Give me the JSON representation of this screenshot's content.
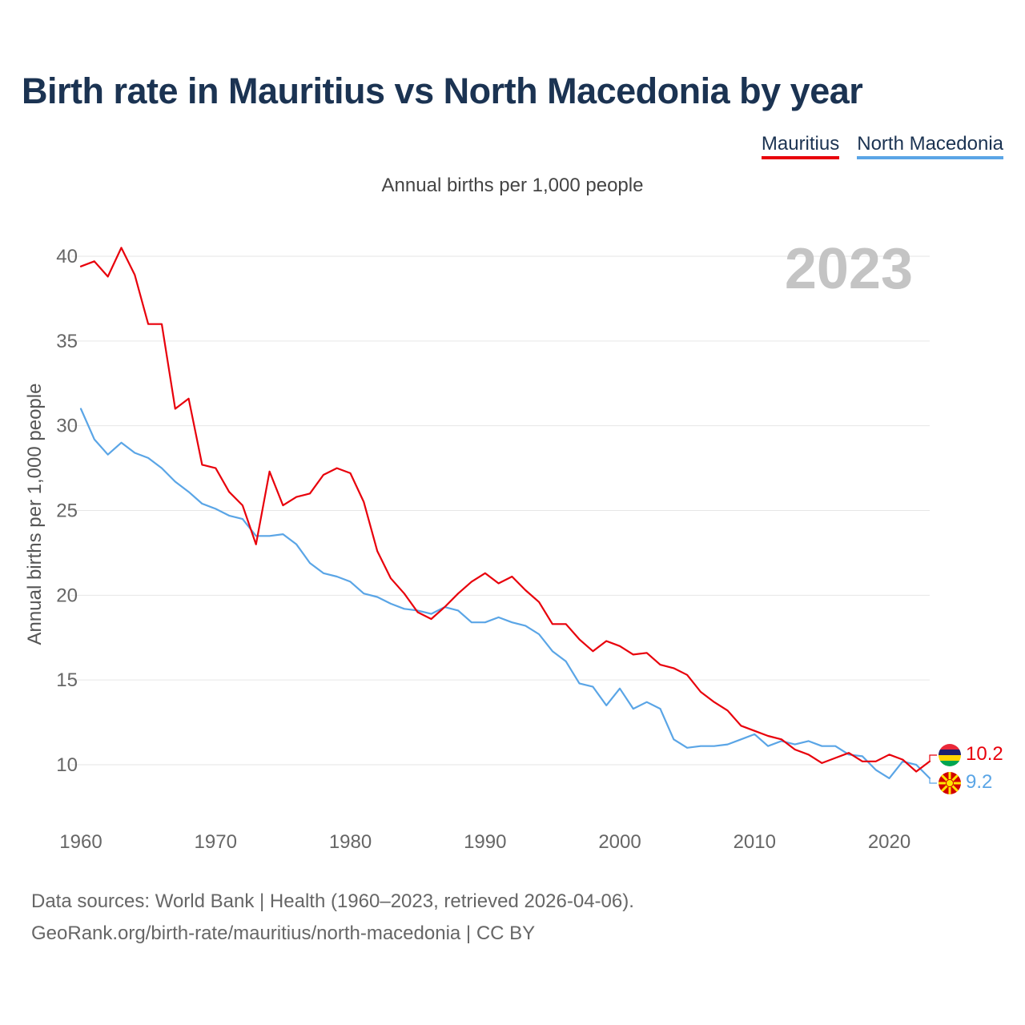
{
  "title": "Birth rate in Mauritius vs North Macedonia by year",
  "subtitle": "Annual births per 1,000 people",
  "footer": {
    "line1": "Data sources: World Bank | Health (1960–2023, retrieved 2026-04-06).",
    "line2": "GeoRank.org/birth-rate/mauritius/north-macedonia | CC BY"
  },
  "colors": {
    "mauritius": "#e8000b",
    "north_macedonia": "#5aa5e6",
    "title": "#1b3352",
    "year_watermark": "#c4c4c4"
  },
  "chart_data": {
    "type": "line",
    "year_watermark": "2023",
    "xlabel": "",
    "ylabel": "Annual births per 1,000 people",
    "xlim": [
      1960,
      2023
    ],
    "ylim": [
      7,
      42
    ],
    "x_ticks": [
      1960,
      1970,
      1980,
      1990,
      2000,
      2010,
      2020
    ],
    "y_ticks": [
      10,
      15,
      20,
      25,
      30,
      35,
      40
    ],
    "x": [
      1960,
      1961,
      1962,
      1963,
      1964,
      1965,
      1966,
      1967,
      1968,
      1969,
      1970,
      1971,
      1972,
      1973,
      1974,
      1975,
      1976,
      1977,
      1978,
      1979,
      1980,
      1981,
      1982,
      1983,
      1984,
      1985,
      1986,
      1987,
      1988,
      1989,
      1990,
      1991,
      1992,
      1993,
      1994,
      1995,
      1996,
      1997,
      1998,
      1999,
      2000,
      2001,
      2002,
      2003,
      2004,
      2005,
      2006,
      2007,
      2008,
      2009,
      2010,
      2011,
      2012,
      2013,
      2014,
      2015,
      2016,
      2017,
      2018,
      2019,
      2020,
      2021,
      2022,
      2023
    ],
    "series": [
      {
        "name": "Mauritius",
        "key": "mauritius",
        "end_label": "10.2",
        "flag": "mauritius-flag-icon",
        "values": [
          39.4,
          39.7,
          38.8,
          40.5,
          38.9,
          36.0,
          36.0,
          31.0,
          31.6,
          27.7,
          27.5,
          26.1,
          25.3,
          23.0,
          27.3,
          25.3,
          25.8,
          26.0,
          27.1,
          27.5,
          27.2,
          25.5,
          22.6,
          21.0,
          20.1,
          19.0,
          18.6,
          19.3,
          20.1,
          20.8,
          21.3,
          20.7,
          21.1,
          20.3,
          19.6,
          18.3,
          18.3,
          17.4,
          16.7,
          17.3,
          17.0,
          16.5,
          16.6,
          15.9,
          15.7,
          15.3,
          14.3,
          13.7,
          13.2,
          12.3,
          12.0,
          11.7,
          11.5,
          10.9,
          10.6,
          10.1,
          10.4,
          10.7,
          10.2,
          10.2,
          10.6,
          10.3,
          9.6,
          10.2
        ]
      },
      {
        "name": "North Macedonia",
        "key": "north_macedonia",
        "end_label": "9.2",
        "flag": "north-macedonia-flag-icon",
        "values": [
          31.0,
          29.2,
          28.3,
          29.0,
          28.4,
          28.1,
          27.5,
          26.7,
          26.1,
          25.4,
          25.1,
          24.7,
          24.5,
          23.5,
          23.5,
          23.6,
          23.0,
          21.9,
          21.3,
          21.1,
          20.8,
          20.1,
          19.9,
          19.5,
          19.2,
          19.1,
          18.9,
          19.3,
          19.1,
          18.4,
          18.4,
          18.7,
          18.4,
          18.2,
          17.7,
          16.7,
          16.1,
          14.8,
          14.6,
          13.5,
          14.5,
          13.3,
          13.7,
          13.3,
          11.5,
          11.0,
          11.1,
          11.1,
          11.2,
          11.5,
          11.8,
          11.1,
          11.4,
          11.2,
          11.4,
          11.1,
          11.1,
          10.6,
          10.5,
          9.7,
          9.2,
          10.2,
          10.0,
          9.2
        ]
      }
    ]
  }
}
